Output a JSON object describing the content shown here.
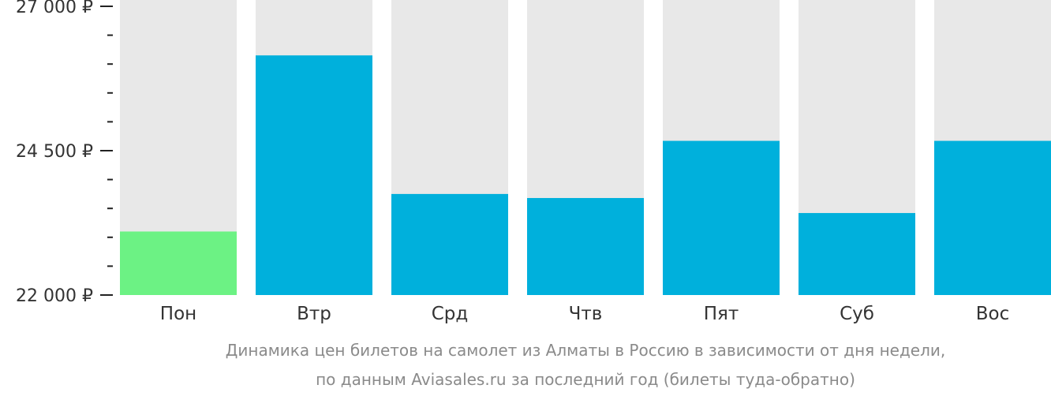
{
  "chart_data": {
    "type": "bar",
    "categories": [
      "Пон",
      "Втр",
      "Срд",
      "Чтв",
      "Пят",
      "Суб",
      "Вос"
    ],
    "values": [
      23100,
      26150,
      23750,
      23680,
      24670,
      23420,
      24670
    ],
    "ylim": [
      22000,
      27000
    ],
    "y_ticks": [
      {
        "value": 22000,
        "label": "22 000 ₽"
      },
      {
        "value": 24500,
        "label": "24 500 ₽"
      },
      {
        "value": 27000,
        "label": "27 000 ₽"
      }
    ],
    "minor_tick_step": 500,
    "caption": [
      "Динамика цен билетов на самолет из Алматы в Россию в зависимости от дня недели,",
      "по данным Aviasales.ru за последний год (билеты туда-обратно)"
    ],
    "colors": {
      "bar": "#00b0dc",
      "min_bar": "#6cf284",
      "track": "#e8e8e8",
      "axis": "#222222"
    },
    "highlight_index": 0,
    "grid": false,
    "legend": "none"
  }
}
